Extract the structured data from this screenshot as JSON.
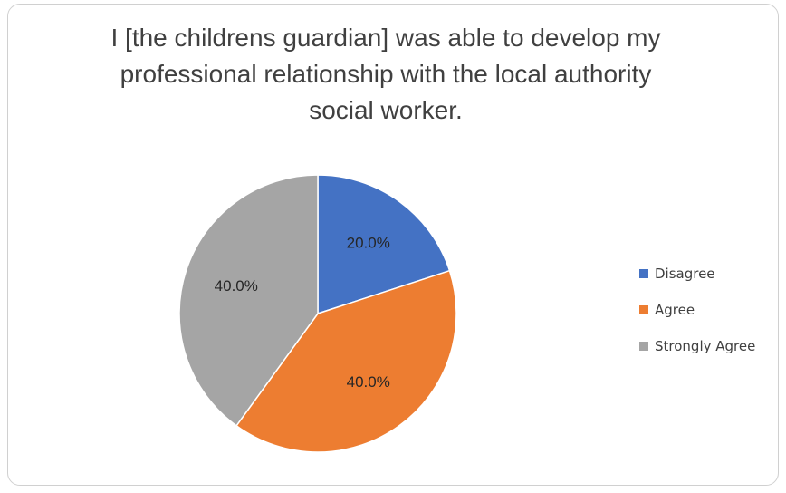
{
  "chart_data": {
    "type": "pie",
    "title_lines": [
      "I [the childrens guardian] was able to develop my",
      "professional relationship with the local authority",
      "social worker."
    ],
    "categories": [
      "Disagree",
      "Agree",
      "Strongly Agree"
    ],
    "values": [
      20.0,
      40.0,
      40.0
    ],
    "labels": [
      "20.0%",
      "40.0%",
      "40.0%"
    ],
    "colors": [
      "#4472C4",
      "#ED7D31",
      "#A5A5A5"
    ],
    "legend_position": "right"
  }
}
